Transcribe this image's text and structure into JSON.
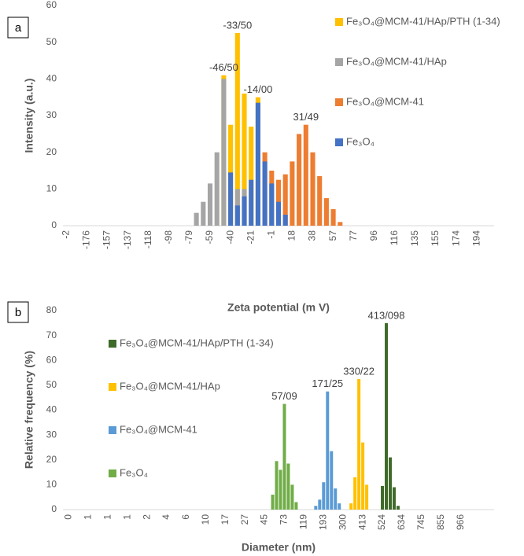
{
  "chart_data": [
    {
      "type": "bar",
      "panel_label": "a",
      "xlabel": "Zeta potential (m V)",
      "ylabel": "Intensity (a.u.)",
      "ylim": [
        0,
        60
      ],
      "yticks": [
        0,
        10,
        20,
        30,
        40,
        50,
        60
      ],
      "categories": [
        "-2",
        null,
        null,
        "-176",
        null,
        null,
        "-157",
        null,
        null,
        "-137",
        null,
        null,
        "-118",
        null,
        null,
        "-98",
        null,
        null,
        "-79",
        null,
        null,
        "-59",
        null,
        null,
        "-40",
        null,
        null,
        "-21",
        null,
        null,
        "-1",
        null,
        null,
        "18",
        null,
        null,
        "38",
        null,
        null,
        "57",
        null,
        null,
        "77",
        null,
        null,
        "96",
        null,
        null,
        "116",
        null,
        null,
        "135",
        null,
        null,
        "155",
        null,
        null,
        "174",
        null,
        null,
        "194",
        null,
        null
      ],
      "series": [
        {
          "name": "Fe₃O₄@MCM-41/HAp/PTH (1-34)",
          "color": "#ffc000",
          "annotation": "-33/50",
          "values": [
            0,
            0,
            0,
            0,
            0,
            0,
            0,
            0,
            0,
            0,
            0,
            0,
            0,
            0,
            0,
            0,
            0,
            0,
            0,
            0,
            0,
            0,
            0,
            41,
            27.5,
            52.5,
            36,
            27,
            35,
            0,
            0,
            0,
            0,
            0,
            0,
            0,
            0,
            0,
            0,
            0,
            0,
            0,
            0,
            0,
            0,
            0,
            0,
            0,
            0,
            0,
            0,
            0,
            0,
            0,
            0,
            0,
            0,
            0,
            0,
            0,
            0,
            0,
            0
          ]
        },
        {
          "name": "Fe₃O₄@MCM-41/HAp",
          "color": "#a5a5a5",
          "annotation": "-46/50",
          "values": [
            0,
            0,
            0,
            0,
            0,
            0,
            0,
            0,
            0,
            0,
            0,
            0,
            0,
            0,
            0,
            0,
            0,
            0,
            0,
            3.5,
            6.5,
            11.5,
            20,
            40,
            0,
            10,
            10,
            0,
            0,
            0,
            0,
            0,
            0,
            0,
            0,
            0,
            0,
            0,
            0,
            0,
            0,
            0,
            0,
            0,
            0,
            0,
            0,
            0,
            0,
            0,
            0,
            0,
            0,
            0,
            0,
            0,
            0,
            0,
            0,
            0,
            0,
            0,
            0
          ]
        },
        {
          "name": "Fe₃O₄@MCM-41",
          "color": "#ed7d31",
          "annotation": "31/49",
          "values": [
            0,
            0,
            0,
            0,
            0,
            0,
            0,
            0,
            0,
            0,
            0,
            0,
            0,
            0,
            0,
            0,
            0,
            0,
            0,
            0,
            0,
            0,
            0,
            0,
            0,
            0,
            0,
            0,
            0,
            20,
            15,
            12.5,
            14,
            17.5,
            25,
            27.5,
            20,
            13.5,
            7.5,
            4.5,
            1,
            0,
            0,
            0,
            0,
            0,
            0,
            0,
            0,
            0,
            0,
            0,
            0,
            0,
            0,
            0,
            0,
            0,
            0,
            0,
            0,
            0,
            0
          ]
        },
        {
          "name": "Fe₃O₄",
          "color": "#4472c4",
          "annotation": "-14/00",
          "values": [
            0,
            0,
            0,
            0,
            0,
            0,
            0,
            0,
            0,
            0,
            0,
            0,
            0,
            0,
            0,
            0,
            0,
            0,
            0,
            0,
            0,
            0,
            0,
            0,
            14.5,
            5.5,
            8,
            12.5,
            33.5,
            17.5,
            11.5,
            6.5,
            3,
            0,
            0,
            0,
            0,
            0,
            0,
            0,
            0,
            0,
            0,
            0,
            0,
            0,
            0,
            0,
            0,
            0,
            0,
            0,
            0,
            0,
            0,
            0,
            0,
            0,
            0,
            0,
            0,
            0,
            0
          ]
        }
      ]
    },
    {
      "type": "bar",
      "panel_label": "b",
      "xlabel": "Diameter (nm)",
      "ylabel": "Relative frequency (%)",
      "ylim": [
        0,
        80
      ],
      "yticks": [
        0,
        10,
        20,
        30,
        40,
        50,
        60,
        70,
        80
      ],
      "categories": [
        null,
        "0",
        null,
        null,
        null,
        null,
        "1",
        null,
        null,
        null,
        null,
        "1",
        null,
        null,
        null,
        null,
        "1",
        null,
        null,
        null,
        null,
        "2",
        null,
        null,
        null,
        null,
        "4",
        null,
        null,
        null,
        null,
        "6",
        null,
        null,
        null,
        null,
        "10",
        null,
        null,
        null,
        null,
        "17",
        null,
        null,
        null,
        null,
        "27",
        null,
        null,
        null,
        null,
        "45",
        null,
        null,
        null,
        null,
        "73",
        null,
        null,
        null,
        null,
        "119",
        null,
        null,
        null,
        null,
        "193",
        null,
        null,
        null,
        null,
        "300",
        null,
        null,
        null,
        null,
        "413",
        null,
        null,
        null,
        null,
        "524",
        null,
        null,
        null,
        null,
        "634",
        null,
        null,
        null,
        null,
        "745",
        null,
        null,
        null,
        null,
        "855",
        null,
        null,
        null,
        null,
        "966",
        null,
        null,
        null,
        null,
        null,
        null,
        null,
        null
      ],
      "series": [
        {
          "name": "Fe₃O₄@MCM-41/HAp/PTH (1-34)",
          "color": "#3f6b2a",
          "annotation": "413/098",
          "values": [
            0,
            0,
            0,
            0,
            0,
            0,
            0,
            0,
            0,
            0,
            0,
            0,
            0,
            0,
            0,
            0,
            0,
            0,
            0,
            0,
            0,
            0,
            0,
            0,
            0,
            0,
            0,
            0,
            0,
            0,
            0,
            0,
            0,
            0,
            0,
            0,
            0,
            0,
            0,
            0,
            0,
            0,
            0,
            0,
            0,
            0,
            0,
            0,
            0,
            0,
            0,
            0,
            0,
            0,
            0,
            0,
            0,
            0,
            0,
            0,
            0,
            0,
            0,
            0,
            0,
            0,
            0,
            0,
            0,
            0,
            0,
            0,
            0,
            0,
            0,
            0,
            0,
            0,
            0,
            0,
            0,
            9.5,
            75,
            21,
            9,
            1.5,
            0,
            0,
            0,
            0,
            0,
            0,
            0,
            0,
            0,
            0,
            0,
            0,
            0,
            0,
            0,
            0,
            0,
            0,
            0,
            0,
            0,
            0,
            0,
            0
          ]
        },
        {
          "name": "Fe₃O₄@MCM-41/HAp",
          "color": "#ffc000",
          "annotation": "330/22",
          "values": [
            0,
            0,
            0,
            0,
            0,
            0,
            0,
            0,
            0,
            0,
            0,
            0,
            0,
            0,
            0,
            0,
            0,
            0,
            0,
            0,
            0,
            0,
            0,
            0,
            0,
            0,
            0,
            0,
            0,
            0,
            0,
            0,
            0,
            0,
            0,
            0,
            0,
            0,
            0,
            0,
            0,
            0,
            0,
            0,
            0,
            0,
            0,
            0,
            0,
            0,
            0,
            0,
            0,
            0,
            0,
            0,
            0,
            0,
            0,
            0,
            0,
            0,
            0,
            0,
            0,
            0,
            0,
            0,
            0,
            0,
            0,
            0,
            0,
            2.5,
            13,
            52.5,
            27,
            10,
            0,
            0,
            0,
            0,
            0,
            0,
            0,
            0,
            0,
            0,
            0,
            0,
            0,
            0,
            0,
            0,
            0,
            0,
            0,
            0,
            0,
            0,
            0,
            0,
            0,
            0,
            0,
            0,
            0,
            0,
            0,
            0
          ]
        },
        {
          "name": "Fe₃O₄@MCM-41",
          "color": "#5b9bd5",
          "annotation": "171/25",
          "values": [
            0,
            0,
            0,
            0,
            0,
            0,
            0,
            0,
            0,
            0,
            0,
            0,
            0,
            0,
            0,
            0,
            0,
            0,
            0,
            0,
            0,
            0,
            0,
            0,
            0,
            0,
            0,
            0,
            0,
            0,
            0,
            0,
            0,
            0,
            0,
            0,
            0,
            0,
            0,
            0,
            0,
            0,
            0,
            0,
            0,
            0,
            0,
            0,
            0,
            0,
            0,
            0,
            0,
            0,
            0,
            0,
            0,
            0,
            0,
            0,
            0,
            0,
            0,
            0,
            1.5,
            4,
            11,
            47.5,
            23.5,
            8.5,
            2.5,
            0,
            0,
            0,
            0,
            0,
            0,
            0,
            0,
            0,
            0,
            0,
            0,
            0,
            0,
            0,
            0,
            0,
            0,
            0,
            0,
            0,
            0,
            0,
            0,
            0,
            0,
            0,
            0,
            0,
            0,
            0,
            0,
            0,
            0,
            0,
            0,
            0,
            0,
            0
          ]
        },
        {
          "name": "Fe₃O₄",
          "color": "#70ad47",
          "annotation": "57/09",
          "values": [
            0,
            0,
            0,
            0,
            0,
            0,
            0,
            0,
            0,
            0,
            0,
            0,
            0,
            0,
            0,
            0,
            0,
            0,
            0,
            0,
            0,
            0,
            0,
            0,
            0,
            0,
            0,
            0,
            0,
            0,
            0,
            0,
            0,
            0,
            0,
            0,
            0,
            0,
            0,
            0,
            0,
            0,
            0,
            0,
            0,
            0,
            0,
            0,
            0,
            0,
            0,
            0,
            0,
            6,
            19.5,
            16,
            42.5,
            18.5,
            10,
            3,
            0,
            0,
            0,
            0,
            0,
            0,
            0,
            0,
            0,
            0,
            0,
            0,
            0,
            0,
            0,
            0,
            0,
            0,
            0,
            0,
            0,
            0,
            0,
            0,
            0,
            0,
            0,
            0,
            0,
            0,
            0,
            0,
            0,
            0,
            0,
            0,
            0,
            0,
            0,
            0,
            0,
            0,
            0,
            0,
            0,
            0,
            0,
            0,
            0,
            0
          ]
        }
      ]
    }
  ]
}
